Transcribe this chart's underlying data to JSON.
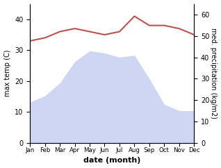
{
  "months": [
    "Jan",
    "Feb",
    "Mar",
    "Apr",
    "May",
    "Jun",
    "Jul",
    "Aug",
    "Sep",
    "Oct",
    "Nov",
    "Dec"
  ],
  "rainfall": [
    19,
    22,
    28,
    38,
    43,
    42,
    40,
    41,
    30,
    18,
    15,
    15
  ],
  "temperature": [
    33,
    34,
    36,
    37,
    36,
    35,
    36,
    41,
    38,
    38,
    37,
    35
  ],
  "temp_ylim": [
    0,
    45
  ],
  "rain_ylim": [
    0,
    65
  ],
  "temp_yticks": [
    0,
    10,
    20,
    30,
    40
  ],
  "rain_yticks": [
    0,
    10,
    20,
    30,
    40,
    50,
    60
  ],
  "fill_color": "#b0bcee",
  "fill_alpha": 0.6,
  "line_color": "#c0504d",
  "ylabel_left": "max temp (C)",
  "ylabel_right": "med. precipitation (kg/m2)",
  "xlabel": "date (month)",
  "line_width": 1.5
}
